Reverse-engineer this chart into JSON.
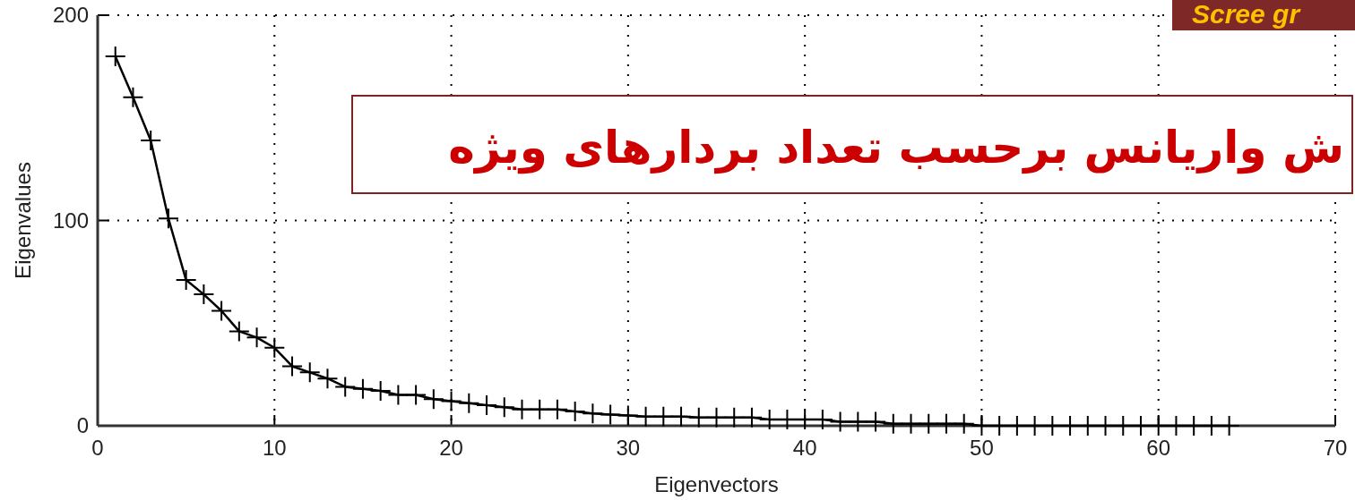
{
  "chart_data": {
    "type": "line",
    "title": "Scree gr",
    "subtitle": "ش واریانس برحسب تعداد بردارهای ویژه",
    "xlabel": "Eigenvectors",
    "ylabel": "Eigenvalues",
    "x": [
      1,
      2,
      3,
      4,
      5,
      6,
      7,
      8,
      9,
      10,
      11,
      12,
      13,
      14,
      15,
      16,
      17,
      18,
      19,
      20,
      21,
      22,
      23,
      24,
      25,
      26,
      27,
      28,
      29,
      30,
      31,
      32,
      33,
      34,
      35,
      36,
      37,
      38,
      39,
      40,
      41,
      42,
      43,
      44,
      45,
      46,
      47,
      48,
      49,
      50,
      51,
      52,
      53,
      54,
      55,
      56,
      57,
      58,
      59,
      60,
      61,
      62,
      63,
      64
    ],
    "values": [
      180,
      160,
      139,
      101,
      71,
      64,
      56,
      46,
      43,
      38,
      29,
      26,
      23,
      19,
      18,
      17,
      15,
      15,
      13,
      12,
      11,
      10,
      9,
      8,
      8,
      8,
      7,
      6,
      5.5,
      5,
      4.5,
      4.5,
      4.5,
      4,
      4,
      4,
      4,
      3,
      3,
      3,
      3,
      2,
      2,
      2,
      1,
      1,
      1,
      1,
      1,
      0,
      0,
      0,
      0,
      0,
      0,
      0,
      0,
      0,
      0,
      0,
      0,
      0,
      0,
      0
    ],
    "color": "#000000",
    "xlim": [
      0,
      70
    ],
    "ylim": [
      0,
      200
    ],
    "xticks": [
      0,
      10,
      20,
      30,
      40,
      50,
      60,
      70
    ],
    "yticks": [
      0,
      100,
      200
    ],
    "grid": true,
    "marker": "cross",
    "line_style": "solid"
  }
}
